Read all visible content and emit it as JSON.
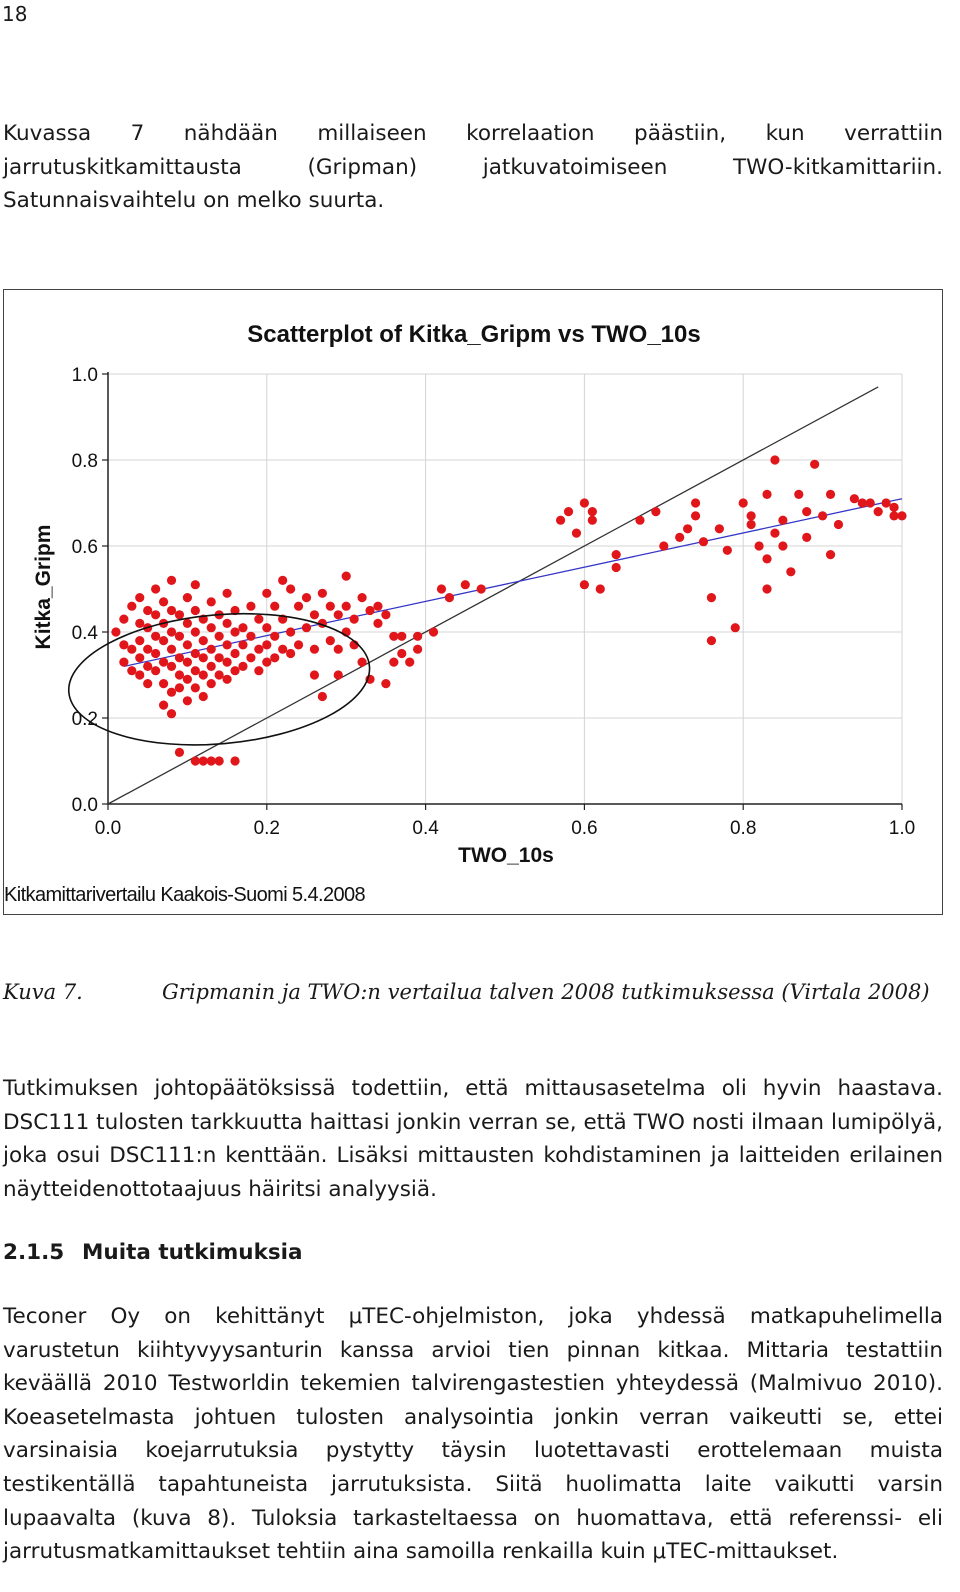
{
  "page_number": "18",
  "paragraph1": "Kuvassa 7 nähdään millaiseen korrelaation päästiin, kun verrattiin jarrutuskitkamittausta (Gripman) jatkuvatoimiseen TWO-kitkamittariin. Satunnaisvaihtelu on melko suurta.",
  "figure": {
    "footer": "Kitkamittarivertailu Kaakois-Suomi 5.4.2008"
  },
  "chart_data": {
    "type": "scatter",
    "title": "Scatterplot of Kitka_Gripm vs TWO_10s",
    "xlabel": "TWO_10s",
    "ylabel": "Kitka_Gripm",
    "xlim": [
      0,
      1
    ],
    "ylim": [
      0,
      1
    ],
    "xticks": [
      "0.0",
      "0.2",
      "0.4",
      "0.6",
      "0.8",
      "1.0"
    ],
    "yticks": [
      "0.0",
      "0.2",
      "0.4",
      "0.6",
      "0.8",
      "1.0"
    ],
    "grid": true,
    "point_color": "#e0161b",
    "fit_line": {
      "x": [
        0.02,
        1.0
      ],
      "y": [
        0.32,
        0.71
      ],
      "color": "#3535c8"
    },
    "identity_line": {
      "x": [
        0.0,
        0.97
      ],
      "y": [
        0.0,
        0.97
      ],
      "color": "#333333"
    },
    "annotation": {
      "shape": "ellipse",
      "cx": 0.14,
      "cy": 0.29,
      "rx": 0.19,
      "ry": 0.15
    },
    "points": [
      [
        0.01,
        0.4
      ],
      [
        0.02,
        0.43
      ],
      [
        0.02,
        0.37
      ],
      [
        0.02,
        0.33
      ],
      [
        0.03,
        0.46
      ],
      [
        0.03,
        0.36
      ],
      [
        0.03,
        0.31
      ],
      [
        0.04,
        0.48
      ],
      [
        0.04,
        0.42
      ],
      [
        0.04,
        0.38
      ],
      [
        0.04,
        0.34
      ],
      [
        0.04,
        0.3
      ],
      [
        0.05,
        0.45
      ],
      [
        0.05,
        0.41
      ],
      [
        0.05,
        0.36
      ],
      [
        0.05,
        0.32
      ],
      [
        0.05,
        0.28
      ],
      [
        0.06,
        0.5
      ],
      [
        0.06,
        0.44
      ],
      [
        0.06,
        0.39
      ],
      [
        0.06,
        0.35
      ],
      [
        0.06,
        0.31
      ],
      [
        0.07,
        0.47
      ],
      [
        0.07,
        0.42
      ],
      [
        0.07,
        0.38
      ],
      [
        0.07,
        0.33
      ],
      [
        0.07,
        0.28
      ],
      [
        0.07,
        0.23
      ],
      [
        0.08,
        0.52
      ],
      [
        0.08,
        0.45
      ],
      [
        0.08,
        0.4
      ],
      [
        0.08,
        0.36
      ],
      [
        0.08,
        0.32
      ],
      [
        0.08,
        0.26
      ],
      [
        0.08,
        0.21
      ],
      [
        0.09,
        0.44
      ],
      [
        0.09,
        0.39
      ],
      [
        0.09,
        0.34
      ],
      [
        0.09,
        0.3
      ],
      [
        0.09,
        0.27
      ],
      [
        0.09,
        0.12
      ],
      [
        0.1,
        0.48
      ],
      [
        0.1,
        0.42
      ],
      [
        0.1,
        0.37
      ],
      [
        0.1,
        0.33
      ],
      [
        0.1,
        0.29
      ],
      [
        0.1,
        0.24
      ],
      [
        0.11,
        0.51
      ],
      [
        0.11,
        0.45
      ],
      [
        0.11,
        0.4
      ],
      [
        0.11,
        0.35
      ],
      [
        0.11,
        0.31
      ],
      [
        0.11,
        0.27
      ],
      [
        0.11,
        0.1
      ],
      [
        0.12,
        0.43
      ],
      [
        0.12,
        0.38
      ],
      [
        0.12,
        0.34
      ],
      [
        0.12,
        0.3
      ],
      [
        0.12,
        0.25
      ],
      [
        0.12,
        0.1
      ],
      [
        0.13,
        0.47
      ],
      [
        0.13,
        0.41
      ],
      [
        0.13,
        0.36
      ],
      [
        0.13,
        0.32
      ],
      [
        0.13,
        0.28
      ],
      [
        0.13,
        0.1
      ],
      [
        0.14,
        0.44
      ],
      [
        0.14,
        0.39
      ],
      [
        0.14,
        0.34
      ],
      [
        0.14,
        0.3
      ],
      [
        0.14,
        0.1
      ],
      [
        0.15,
        0.49
      ],
      [
        0.15,
        0.42
      ],
      [
        0.15,
        0.37
      ],
      [
        0.15,
        0.33
      ],
      [
        0.15,
        0.29
      ],
      [
        0.16,
        0.45
      ],
      [
        0.16,
        0.4
      ],
      [
        0.16,
        0.35
      ],
      [
        0.16,
        0.31
      ],
      [
        0.16,
        0.1
      ],
      [
        0.17,
        0.41
      ],
      [
        0.17,
        0.37
      ],
      [
        0.17,
        0.32
      ],
      [
        0.18,
        0.46
      ],
      [
        0.18,
        0.39
      ],
      [
        0.18,
        0.34
      ],
      [
        0.19,
        0.43
      ],
      [
        0.19,
        0.36
      ],
      [
        0.19,
        0.31
      ],
      [
        0.2,
        0.49
      ],
      [
        0.2,
        0.41
      ],
      [
        0.2,
        0.37
      ],
      [
        0.2,
        0.33
      ],
      [
        0.21,
        0.46
      ],
      [
        0.21,
        0.39
      ],
      [
        0.21,
        0.34
      ],
      [
        0.22,
        0.52
      ],
      [
        0.22,
        0.43
      ],
      [
        0.22,
        0.36
      ],
      [
        0.23,
        0.5
      ],
      [
        0.23,
        0.4
      ],
      [
        0.23,
        0.35
      ],
      [
        0.24,
        0.46
      ],
      [
        0.24,
        0.37
      ],
      [
        0.25,
        0.48
      ],
      [
        0.25,
        0.41
      ],
      [
        0.26,
        0.44
      ],
      [
        0.26,
        0.36
      ],
      [
        0.26,
        0.3
      ],
      [
        0.27,
        0.49
      ],
      [
        0.27,
        0.42
      ],
      [
        0.27,
        0.25
      ],
      [
        0.28,
        0.46
      ],
      [
        0.28,
        0.38
      ],
      [
        0.29,
        0.44
      ],
      [
        0.29,
        0.36
      ],
      [
        0.29,
        0.3
      ],
      [
        0.3,
        0.53
      ],
      [
        0.3,
        0.46
      ],
      [
        0.3,
        0.4
      ],
      [
        0.31,
        0.43
      ],
      [
        0.31,
        0.37
      ],
      [
        0.32,
        0.48
      ],
      [
        0.32,
        0.33
      ],
      [
        0.33,
        0.45
      ],
      [
        0.33,
        0.29
      ],
      [
        0.34,
        0.42
      ],
      [
        0.34,
        0.46
      ],
      [
        0.35,
        0.28
      ],
      [
        0.35,
        0.44
      ],
      [
        0.36,
        0.39
      ],
      [
        0.36,
        0.33
      ],
      [
        0.37,
        0.35
      ],
      [
        0.37,
        0.39
      ],
      [
        0.38,
        0.33
      ],
      [
        0.39,
        0.39
      ],
      [
        0.39,
        0.36
      ],
      [
        0.41,
        0.4
      ],
      [
        0.42,
        0.5
      ],
      [
        0.43,
        0.48
      ],
      [
        0.45,
        0.51
      ],
      [
        0.47,
        0.5
      ],
      [
        0.57,
        0.66
      ],
      [
        0.58,
        0.68
      ],
      [
        0.59,
        0.63
      ],
      [
        0.6,
        0.7
      ],
      [
        0.6,
        0.51
      ],
      [
        0.61,
        0.68
      ],
      [
        0.61,
        0.66
      ],
      [
        0.62,
        0.5
      ],
      [
        0.64,
        0.58
      ],
      [
        0.64,
        0.55
      ],
      [
        0.67,
        0.66
      ],
      [
        0.69,
        0.68
      ],
      [
        0.7,
        0.6
      ],
      [
        0.72,
        0.62
      ],
      [
        0.73,
        0.64
      ],
      [
        0.74,
        0.67
      ],
      [
        0.74,
        0.7
      ],
      [
        0.75,
        0.61
      ],
      [
        0.76,
        0.48
      ],
      [
        0.76,
        0.38
      ],
      [
        0.77,
        0.64
      ],
      [
        0.78,
        0.59
      ],
      [
        0.79,
        0.41
      ],
      [
        0.8,
        0.7
      ],
      [
        0.81,
        0.67
      ],
      [
        0.81,
        0.65
      ],
      [
        0.82,
        0.6
      ],
      [
        0.83,
        0.72
      ],
      [
        0.83,
        0.57
      ],
      [
        0.83,
        0.5
      ],
      [
        0.84,
        0.63
      ],
      [
        0.84,
        0.8
      ],
      [
        0.85,
        0.66
      ],
      [
        0.85,
        0.6
      ],
      [
        0.86,
        0.54
      ],
      [
        0.87,
        0.72
      ],
      [
        0.88,
        0.68
      ],
      [
        0.88,
        0.62
      ],
      [
        0.89,
        0.79
      ],
      [
        0.9,
        0.67
      ],
      [
        0.91,
        0.58
      ],
      [
        0.91,
        0.72
      ],
      [
        0.92,
        0.65
      ],
      [
        0.94,
        0.71
      ],
      [
        0.95,
        0.7
      ],
      [
        0.96,
        0.7
      ],
      [
        0.97,
        0.68
      ],
      [
        0.98,
        0.7
      ],
      [
        0.99,
        0.67
      ],
      [
        0.99,
        0.69
      ],
      [
        1.0,
        0.67
      ]
    ]
  },
  "caption": {
    "label": "Kuva 7.",
    "text": "Gripmanin ja TWO:n vertailua talven 2008 tutkimuksessa (Virtala 2008)"
  },
  "paragraph2": "Tutkimuksen johtopäätöksissä todettiin, että mittausasetelma oli hyvin haastava. DSC111 tulosten tarkkuutta haittasi jonkin verran se, että TWO nosti ilmaan lumipölyä, joka osui DSC111:n kenttään. Lisäksi mittausten kohdistaminen ja laitteiden erilainen näytteidenottotaajuus häiritsi analyysiä.",
  "section": {
    "number": "2.1.5",
    "title": "Muita tutkimuksia"
  },
  "paragraph3": "Teconer Oy on kehittänyt μTEC-ohjelmiston, joka yhdessä matkapuhelimella varustetun kiihtyvyysanturin kanssa arvioi tien pinnan kitkaa. Mittaria testattiin keväällä 2010 Testworldin tekemien talvirengastestien yhteydessä (Malmivuo 2010). Koeasetelmasta johtuen tulosten analysointia jonkin verran vaikeutti se, ettei varsinaisia koejarrutuksia pystytty täysin luotettavasti erottelemaan muista testikentällä tapahtuneista jarrutuksista. Siitä huolimatta laite vaikutti varsin lupaavalta (kuva 8). Tuloksia tarkasteltaessa on huomattava, että referenssi- eli jarrutusmatkamittaukset tehtiin aina samoilla renkailla kuin μTEC-mittaukset."
}
